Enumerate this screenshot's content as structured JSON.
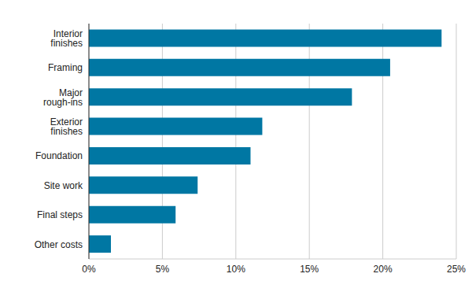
{
  "chart_data": {
    "type": "bar",
    "orientation": "horizontal",
    "categories": [
      "Interior finishes",
      "Framing",
      "Major rough-ins",
      "Exterior finishes",
      "Foundation",
      "Site work",
      "Final steps",
      "Other costs"
    ],
    "values": [
      24.0,
      20.5,
      17.9,
      11.8,
      11.0,
      7.4,
      5.9,
      1.5
    ],
    "color": "#0077a3",
    "xlim": [
      0,
      25
    ],
    "xticks": [
      {
        "value": 0,
        "label": "0%"
      },
      {
        "value": 5,
        "label": "5%"
      },
      {
        "value": 10,
        "label": "10%"
      },
      {
        "value": 15,
        "label": "15%"
      },
      {
        "value": 20,
        "label": "20%"
      },
      {
        "value": 25,
        "label": "25%"
      }
    ],
    "grid": true
  }
}
